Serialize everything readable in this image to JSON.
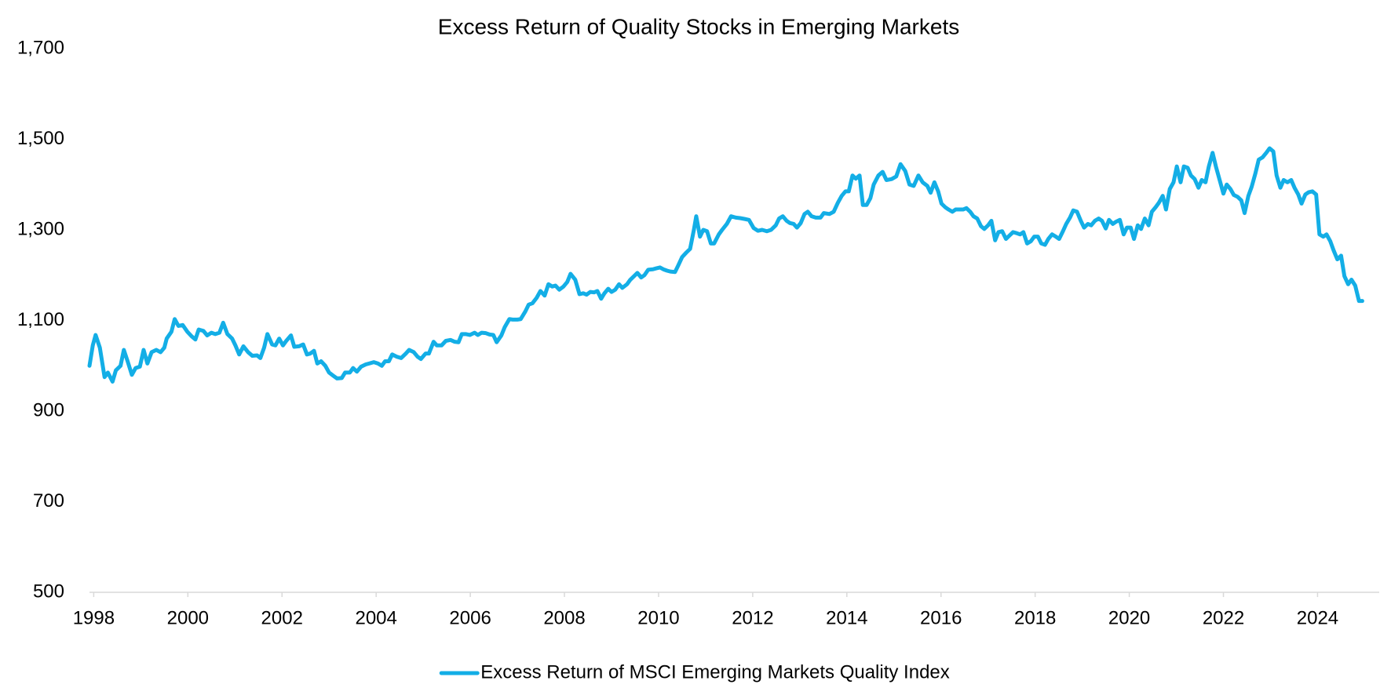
{
  "chart_data": {
    "type": "line",
    "title": "Excess Return of Quality Stocks in Emerging Markets",
    "xlim": [
      1997.91,
      2025.31
    ],
    "xticks": [
      1998,
      2000,
      2002,
      2004,
      2006,
      2008,
      2010,
      2012,
      2014,
      2016,
      2018,
      2020,
      2022,
      2024
    ],
    "ylim": [
      500,
      1700
    ],
    "yticks": [
      500,
      700,
      900,
      {
        "value": 1100,
        "label": "1,100"
      },
      {
        "value": 1300,
        "label": "1,300"
      },
      {
        "value": 1500,
        "label": "1,500"
      },
      {
        "value": 1700,
        "label": "1,700"
      }
    ],
    "grid": false,
    "legend": "bottom",
    "x": [
      1997.91,
      1997.98,
      1998.04,
      1998.13,
      1998.23,
      1998.3,
      1998.4,
      1998.47,
      1998.57,
      1998.64,
      1998.72,
      1998.81,
      1998.89,
      1998.98,
      1999.06,
      1999.14,
      1999.23,
      1999.33,
      1999.42,
      1999.5,
      1999.55,
      1999.65,
      1999.72,
      1999.8,
      1999.89,
      1999.99,
      2000.08,
      2000.16,
      2000.23,
      2000.33,
      2000.41,
      2000.5,
      2000.58,
      2000.67,
      2000.75,
      2000.84,
      2000.94,
      2001.01,
      2001.09,
      2001.18,
      2001.28,
      2001.37,
      2001.47,
      2001.54,
      2001.62,
      2001.69,
      2001.79,
      2001.86,
      2001.94,
      2002.02,
      2002.09,
      2002.19,
      2002.26,
      2002.36,
      2002.45,
      2002.53,
      2002.6,
      2002.68,
      2002.75,
      2002.83,
      2002.92,
      2003.0,
      2003.09,
      2003.17,
      2003.27,
      2003.34,
      2003.44,
      2003.51,
      2003.59,
      2003.68,
      2003.78,
      2003.85,
      2003.95,
      2004.04,
      2004.12,
      2004.19,
      2004.27,
      2004.34,
      2004.44,
      2004.53,
      2004.63,
      2004.7,
      2004.8,
      2004.88,
      2004.95,
      2005.05,
      2005.12,
      2005.22,
      2005.29,
      2005.39,
      2005.48,
      2005.58,
      2005.67,
      2005.75,
      2005.82,
      2005.9,
      2005.99,
      2006.09,
      2006.16,
      2006.24,
      2006.33,
      2006.41,
      2006.49,
      2006.56,
      2006.66,
      2006.73,
      2006.83,
      2006.9,
      2007.0,
      2007.07,
      2007.17,
      2007.24,
      2007.32,
      2007.41,
      2007.49,
      2007.58,
      2007.66,
      2007.74,
      2007.81,
      2007.89,
      2007.98,
      2008.06,
      2008.13,
      2008.23,
      2008.32,
      2008.4,
      2008.47,
      2008.55,
      2008.63,
      2008.7,
      2008.78,
      2008.85,
      2008.93,
      2009.0,
      2009.08,
      2009.16,
      2009.23,
      2009.33,
      2009.4,
      2009.48,
      2009.55,
      2009.63,
      2009.7,
      2009.78,
      2009.88,
      2009.95,
      2010.03,
      2010.1,
      2010.18,
      2010.25,
      2010.35,
      2010.42,
      2010.5,
      2010.59,
      2010.67,
      2010.75,
      2010.8,
      2010.88,
      2010.95,
      2011.03,
      2011.11,
      2011.18,
      2011.28,
      2011.35,
      2011.45,
      2011.54,
      2011.64,
      2011.73,
      2011.83,
      2011.92,
      2012.02,
      2012.11,
      2012.2,
      2012.3,
      2012.39,
      2012.49,
      2012.56,
      2012.64,
      2012.72,
      2012.79,
      2012.87,
      2012.94,
      2013.02,
      2013.1,
      2013.17,
      2013.25,
      2013.34,
      2013.44,
      2013.51,
      2013.63,
      2013.72,
      2013.81,
      2013.89,
      2013.97,
      2014.04,
      2014.12,
      2014.19,
      2014.27,
      2014.34,
      2014.42,
      2014.5,
      2014.57,
      2014.67,
      2014.76,
      2014.84,
      2014.95,
      2015.05,
      2015.14,
      2015.24,
      2015.33,
      2015.42,
      2015.52,
      2015.61,
      2015.71,
      2015.78,
      2015.86,
      2015.94,
      2016.01,
      2016.09,
      2016.16,
      2016.24,
      2016.31,
      2016.39,
      2016.47,
      2016.54,
      2016.62,
      2016.69,
      2016.77,
      2016.85,
      2016.92,
      2017.0,
      2017.07,
      2017.15,
      2017.22,
      2017.3,
      2017.38,
      2017.45,
      2017.53,
      2017.6,
      2017.68,
      2017.75,
      2017.83,
      2017.91,
      2017.98,
      2018.06,
      2018.13,
      2018.21,
      2018.28,
      2018.36,
      2018.44,
      2018.51,
      2018.59,
      2018.66,
      2018.74,
      2018.81,
      2018.89,
      2018.97,
      2019.04,
      2019.12,
      2019.19,
      2019.27,
      2019.35,
      2019.42,
      2019.5,
      2019.57,
      2019.65,
      2019.72,
      2019.8,
      2019.88,
      2019.95,
      2020.03,
      2020.1,
      2020.18,
      2020.25,
      2020.33,
      2020.41,
      2020.48,
      2020.56,
      2020.63,
      2020.71,
      2020.78,
      2020.86,
      2020.94,
      2021.01,
      2021.09,
      2021.16,
      2021.24,
      2021.31,
      2021.39,
      2021.47,
      2021.54,
      2021.62,
      2021.69,
      2021.77,
      2021.84,
      2021.92,
      2022.0,
      2022.07,
      2022.15,
      2022.22,
      2022.3,
      2022.38,
      2022.45,
      2022.53,
      2022.6,
      2022.68,
      2022.75,
      2022.83,
      2022.91,
      2022.98,
      2023.06,
      2023.13,
      2023.21,
      2023.28,
      2023.36,
      2023.44,
      2023.51,
      2023.59,
      2023.66,
      2023.74,
      2023.81,
      2023.89,
      2023.97,
      2024.04,
      2024.12,
      2024.19,
      2024.27,
      2024.34,
      2024.42,
      2024.5,
      2024.57,
      2024.65,
      2024.72,
      2024.8,
      2024.88,
      2024.95
    ],
    "series": [
      {
        "name": "Excess Return of MSCI Emerging Markets Quality Index",
        "color": "#13aee6",
        "values": [
          1000,
          1045,
          1068,
          1040,
          975,
          985,
          965,
          990,
          1000,
          1035,
          1010,
          980,
          995,
          998,
          1035,
          1005,
          1030,
          1035,
          1030,
          1040,
          1060,
          1075,
          1103,
          1088,
          1090,
          1075,
          1065,
          1058,
          1080,
          1077,
          1067,
          1073,
          1070,
          1073,
          1095,
          1070,
          1060,
          1045,
          1025,
          1043,
          1030,
          1022,
          1023,
          1017,
          1040,
          1070,
          1047,
          1045,
          1060,
          1045,
          1055,
          1067,
          1042,
          1043,
          1047,
          1025,
          1027,
          1033,
          1005,
          1010,
          1000,
          985,
          978,
          972,
          973,
          985,
          985,
          995,
          987,
          998,
          1003,
          1005,
          1008,
          1005,
          1000,
          1010,
          1010,
          1025,
          1020,
          1017,
          1027,
          1035,
          1030,
          1020,
          1015,
          1027,
          1027,
          1053,
          1045,
          1045,
          1055,
          1057,
          1053,
          1052,
          1070,
          1070,
          1068,
          1073,
          1068,
          1073,
          1072,
          1069,
          1068,
          1052,
          1067,
          1085,
          1103,
          1102,
          1102,
          1103,
          1120,
          1135,
          1138,
          1150,
          1165,
          1155,
          1180,
          1175,
          1177,
          1168,
          1175,
          1185,
          1203,
          1190,
          1158,
          1160,
          1157,
          1163,
          1162,
          1165,
          1148,
          1160,
          1170,
          1163,
          1168,
          1180,
          1172,
          1180,
          1190,
          1198,
          1205,
          1195,
          1200,
          1212,
          1213,
          1215,
          1217,
          1213,
          1210,
          1208,
          1207,
          1222,
          1240,
          1250,
          1258,
          1300,
          1330,
          1285,
          1300,
          1297,
          1270,
          1270,
          1290,
          1300,
          1313,
          1330,
          1327,
          1326,
          1324,
          1322,
          1304,
          1298,
          1300,
          1297,
          1300,
          1310,
          1325,
          1330,
          1320,
          1315,
          1313,
          1305,
          1315,
          1335,
          1340,
          1330,
          1327,
          1327,
          1337,
          1335,
          1340,
          1360,
          1375,
          1385,
          1385,
          1420,
          1413,
          1420,
          1355,
          1355,
          1370,
          1400,
          1420,
          1428,
          1410,
          1412,
          1418,
          1445,
          1430,
          1400,
          1397,
          1420,
          1405,
          1397,
          1382,
          1405,
          1385,
          1358,
          1350,
          1345,
          1340,
          1345,
          1345,
          1345,
          1348,
          1340,
          1330,
          1325,
          1308,
          1302,
          1310,
          1320,
          1277,
          1295,
          1297,
          1280,
          1287,
          1295,
          1293,
          1290,
          1295,
          1270,
          1275,
          1285,
          1285,
          1270,
          1267,
          1280,
          1290,
          1285,
          1280,
          1297,
          1313,
          1327,
          1343,
          1340,
          1320,
          1305,
          1313,
          1310,
          1320,
          1325,
          1320,
          1303,
          1322,
          1313,
          1318,
          1322,
          1290,
          1305,
          1305,
          1280,
          1310,
          1302,
          1325,
          1310,
          1340,
          1350,
          1360,
          1375,
          1345,
          1390,
          1405,
          1440,
          1405,
          1440,
          1437,
          1420,
          1412,
          1393,
          1410,
          1405,
          1440,
          1470,
          1440,
          1410,
          1380,
          1400,
          1390,
          1377,
          1373,
          1365,
          1337,
          1375,
          1395,
          1425,
          1455,
          1460,
          1470,
          1480,
          1473,
          1420,
          1393,
          1410,
          1405,
          1410,
          1393,
          1378,
          1358,
          1378,
          1383,
          1385,
          1378,
          1290,
          1285,
          1290,
          1275,
          1255,
          1235,
          1243,
          1198,
          1180,
          1190,
          1177,
          1143,
          1143
        ]
      }
    ]
  }
}
